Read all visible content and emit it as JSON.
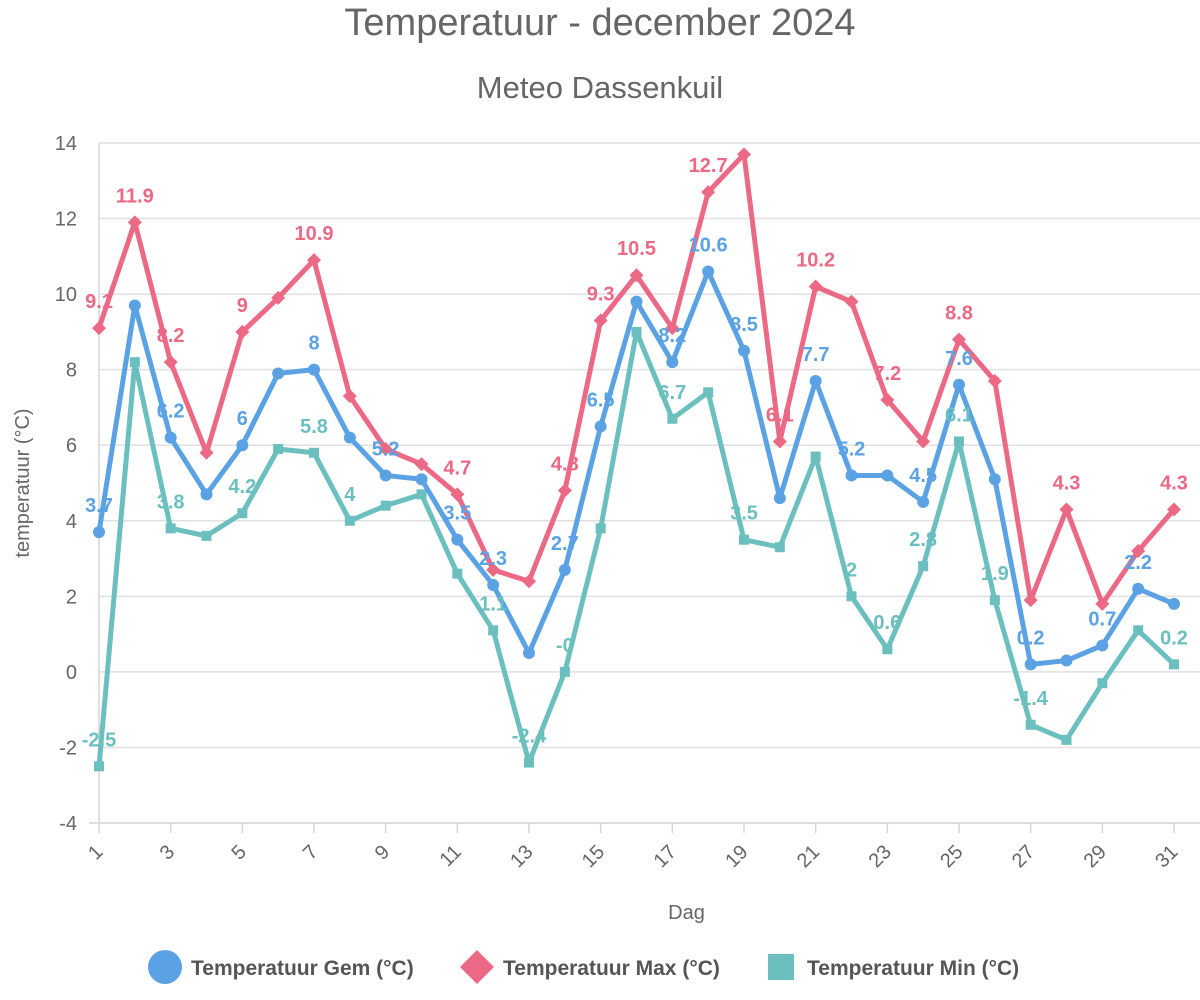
{
  "chart_data": {
    "type": "line",
    "title": "Temperatuur - december 2024",
    "subtitle": "Meteo Dassenkuil",
    "xlabel": "Dag",
    "ylabel": "temperatuur (°C)",
    "ylim": [
      -4,
      14
    ],
    "yticks": [
      -4,
      -2,
      0,
      2,
      4,
      6,
      8,
      10,
      12,
      14
    ],
    "xticks": [
      1,
      3,
      5,
      7,
      9,
      11,
      13,
      15,
      17,
      19,
      21,
      23,
      25,
      27,
      29,
      31
    ],
    "grid": true,
    "legend_position": "bottom",
    "x": [
      1,
      2,
      3,
      4,
      5,
      6,
      7,
      8,
      9,
      10,
      11,
      12,
      13,
      14,
      15,
      16,
      17,
      18,
      19,
      20,
      21,
      22,
      23,
      24,
      25,
      26,
      27,
      28,
      29,
      30,
      31
    ],
    "series": [
      {
        "name": "Temperatuur Gem (°C)",
        "color": "#5aa2e3",
        "marker": "circle",
        "values": [
          3.7,
          9.7,
          6.2,
          4.7,
          6,
          7.9,
          8,
          6.2,
          5.2,
          5.1,
          3.5,
          2.3,
          0.5,
          2.7,
          6.5,
          9.8,
          8.2,
          10.6,
          8.5,
          4.6,
          7.7,
          5.2,
          5.2,
          4.5,
          7.6,
          5.1,
          0.2,
          0.3,
          0.7,
          2.2,
          1.8
        ],
        "labels": [
          "3.7",
          "",
          "6.2",
          "",
          "6",
          "",
          "8",
          "",
          "5.2",
          "",
          "3.5",
          "2.3",
          "",
          "2.7",
          "6.5",
          "",
          "8.2",
          "10.6",
          "8.5",
          "",
          "7.7",
          "5.2",
          "",
          "4.5",
          "7.6",
          "",
          "0.2",
          "",
          "0.7",
          "2.2",
          ""
        ]
      },
      {
        "name": "Temperatuur Max (°C)",
        "color": "#eb6985",
        "marker": "diamond",
        "values": [
          9.1,
          11.9,
          8.2,
          5.8,
          9,
          9.9,
          10.9,
          7.3,
          5.9,
          5.5,
          4.7,
          2.7,
          2.4,
          4.8,
          9.3,
          10.5,
          9.1,
          12.7,
          13.7,
          6.1,
          10.2,
          9.8,
          7.2,
          6.1,
          8.8,
          7.7,
          1.9,
          4.3,
          1.8,
          3.2,
          4.3
        ],
        "labels": [
          "9.1",
          "11.9",
          "8.2",
          "",
          "9",
          "",
          "10.9",
          "",
          "",
          "",
          "4.7",
          "",
          "",
          "4.8",
          "9.3",
          "10.5",
          "",
          "12.7",
          "",
          "6.1",
          "10.2",
          "",
          "7.2",
          "",
          "8.8",
          "",
          "",
          "4.3",
          "",
          "",
          "4.3"
        ]
      },
      {
        "name": "Temperatuur Min (°C)",
        "color": "#6bbfbf",
        "marker": "square",
        "values": [
          -2.5,
          8.2,
          3.8,
          3.6,
          4.2,
          5.9,
          5.8,
          4,
          4.4,
          4.7,
          2.6,
          1.1,
          -2.4,
          0,
          3.8,
          9,
          6.7,
          7.4,
          3.5,
          3.3,
          5.7,
          2,
          0.6,
          2.8,
          6.1,
          1.9,
          -1.4,
          -1.8,
          -0.3,
          1.1,
          0.2
        ],
        "labels": [
          "-2.5",
          "",
          "3.8",
          "",
          "4.2",
          "",
          "5.8",
          "4",
          "",
          "",
          "",
          "1.1",
          "-2.4",
          "-0",
          "",
          "",
          "6.7",
          "",
          "3.5",
          "",
          "",
          "2",
          "0.6",
          "2.8",
          "6.1",
          "1.9",
          "-1.4",
          "",
          "",
          "",
          "0.2"
        ]
      }
    ]
  }
}
